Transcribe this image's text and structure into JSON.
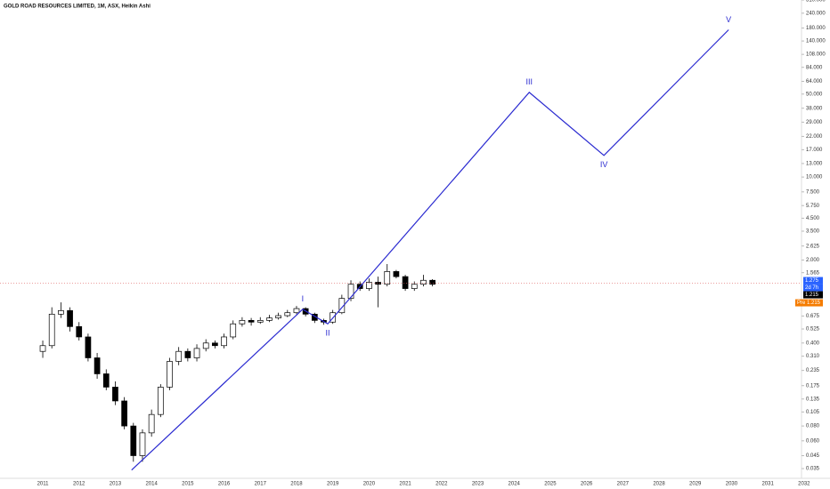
{
  "chart_data": {
    "type": "candlestick",
    "title": "GOLD ROAD RESOURCES LIMITED, 1M, ASX, Heikin Ashi",
    "log_scale": true,
    "xlim": [
      2009.82,
      2031.93
    ],
    "ylim": [
      0.028,
      310
    ],
    "xticks": [
      2011,
      2012,
      2013,
      2014,
      2015,
      2016,
      2017,
      2018,
      2019,
      2020,
      2021,
      2022,
      2023,
      2024,
      2025,
      2026,
      2027,
      2028,
      2029,
      2030,
      2031,
      2032
    ],
    "yticks": [
      {
        "value": 310,
        "label": "310.000"
      },
      {
        "value": 240,
        "label": "240.000"
      },
      {
        "value": 180,
        "label": "180.000"
      },
      {
        "value": 140,
        "label": "140.000"
      },
      {
        "value": 108,
        "label": "108.000"
      },
      {
        "value": 84,
        "label": "84.000"
      },
      {
        "value": 64,
        "label": "64.000"
      },
      {
        "value": 50,
        "label": "50.000"
      },
      {
        "value": 38,
        "label": "38.000"
      },
      {
        "value": 29,
        "label": "29.000"
      },
      {
        "value": 22,
        "label": "22.000"
      },
      {
        "value": 17,
        "label": "17.000"
      },
      {
        "value": 13,
        "label": "13.000"
      },
      {
        "value": 10,
        "label": "10.000"
      },
      {
        "value": 7.5,
        "label": "7.500"
      },
      {
        "value": 5.75,
        "label": "5.750"
      },
      {
        "value": 4.5,
        "label": "4.500"
      },
      {
        "value": 3.5,
        "label": "3.500"
      },
      {
        "value": 2.625,
        "label": "2.625"
      },
      {
        "value": 2,
        "label": "2.000"
      },
      {
        "value": 1.565,
        "label": "1.565"
      },
      {
        "value": 0.675,
        "label": "0.675"
      },
      {
        "value": 0.525,
        "label": "0.525"
      },
      {
        "value": 0.4,
        "label": "0.400"
      },
      {
        "value": 0.31,
        "label": "0.310"
      },
      {
        "value": 0.235,
        "label": "0.235"
      },
      {
        "value": 0.175,
        "label": "0.175"
      },
      {
        "value": 0.135,
        "label": "0.135"
      },
      {
        "value": 0.105,
        "label": "0.105"
      },
      {
        "value": 0.08,
        "label": "0.080"
      },
      {
        "value": 0.06,
        "label": "0.060"
      },
      {
        "value": 0.045,
        "label": "0.045"
      },
      {
        "value": 0.035,
        "label": "0.035"
      }
    ],
    "candles": {
      "x": [
        2011,
        2011.25,
        2011.5,
        2011.75,
        2012,
        2012.25,
        2012.5,
        2012.75,
        2013,
        2013.25,
        2013.5,
        2013.75,
        2014,
        2014.25,
        2014.5,
        2014.75,
        2015,
        2015.25,
        2015.5,
        2015.75,
        2016,
        2016.25,
        2016.5,
        2016.75,
        2017,
        2017.25,
        2017.5,
        2017.75,
        2018,
        2018.25,
        2018.5,
        2018.75,
        2019,
        2019.25,
        2019.5,
        2019.75,
        2020,
        2020.25,
        2020.5,
        2020.75,
        2021,
        2021.25,
        2021.5,
        2021.75
      ],
      "open": [
        0.34,
        0.38,
        0.7,
        0.75,
        0.55,
        0.45,
        0.3,
        0.22,
        0.17,
        0.13,
        0.08,
        0.045,
        0.07,
        0.1,
        0.17,
        0.28,
        0.34,
        0.3,
        0.36,
        0.4,
        0.38,
        0.45,
        0.58,
        0.62,
        0.6,
        0.62,
        0.65,
        0.68,
        0.72,
        0.78,
        0.7,
        0.62,
        0.6,
        0.72,
        0.95,
        1.25,
        1.15,
        1.3,
        1.25,
        1.6,
        1.45,
        1.15,
        1.25,
        1.35
      ],
      "high": [
        0.42,
        0.8,
        0.88,
        0.8,
        0.6,
        0.48,
        0.33,
        0.24,
        0.19,
        0.14,
        0.085,
        0.075,
        0.11,
        0.18,
        0.3,
        0.37,
        0.36,
        0.39,
        0.43,
        0.42,
        0.48,
        0.62,
        0.66,
        0.65,
        0.66,
        0.69,
        0.72,
        0.76,
        0.82,
        0.8,
        0.72,
        0.64,
        0.76,
        1.02,
        1.35,
        1.32,
        1.4,
        1.45,
        1.85,
        1.65,
        1.5,
        1.32,
        1.5,
        1.38
      ],
      "low": [
        0.3,
        0.36,
        0.65,
        0.5,
        0.42,
        0.28,
        0.2,
        0.16,
        0.12,
        0.075,
        0.04,
        0.04,
        0.065,
        0.095,
        0.16,
        0.26,
        0.28,
        0.28,
        0.34,
        0.36,
        0.36,
        0.43,
        0.55,
        0.56,
        0.58,
        0.6,
        0.63,
        0.66,
        0.7,
        0.67,
        0.59,
        0.57,
        0.58,
        0.7,
        0.9,
        1.1,
        1.1,
        0.8,
        1.2,
        1.4,
        1.1,
        1.1,
        1.2,
        1.2
      ],
      "close": [
        0.38,
        0.7,
        0.75,
        0.55,
        0.45,
        0.3,
        0.22,
        0.17,
        0.13,
        0.08,
        0.045,
        0.07,
        0.1,
        0.17,
        0.28,
        0.34,
        0.3,
        0.36,
        0.4,
        0.38,
        0.45,
        0.58,
        0.62,
        0.6,
        0.62,
        0.65,
        0.68,
        0.72,
        0.78,
        0.7,
        0.62,
        0.6,
        0.72,
        0.95,
        1.25,
        1.15,
        1.3,
        1.25,
        1.6,
        1.45,
        1.15,
        1.25,
        1.35,
        1.25
      ]
    },
    "wave": {
      "color": "#2a2ad0",
      "x": [
        2013.45,
        2018.17,
        2018.86,
        2024.42,
        2026.48,
        2029.92
      ],
      "values": [
        0.034,
        0.77,
        0.58,
        51.7,
        15.2,
        174
      ],
      "labels": [
        null,
        "I",
        "II",
        "III",
        "IV",
        "V"
      ]
    },
    "price_line": {
      "value": 1.275,
      "label": "1.275",
      "countdown": "2d 7h",
      "close_label": "1.215",
      "pre_tag": "Pre",
      "pre_label": "1.215"
    }
  }
}
